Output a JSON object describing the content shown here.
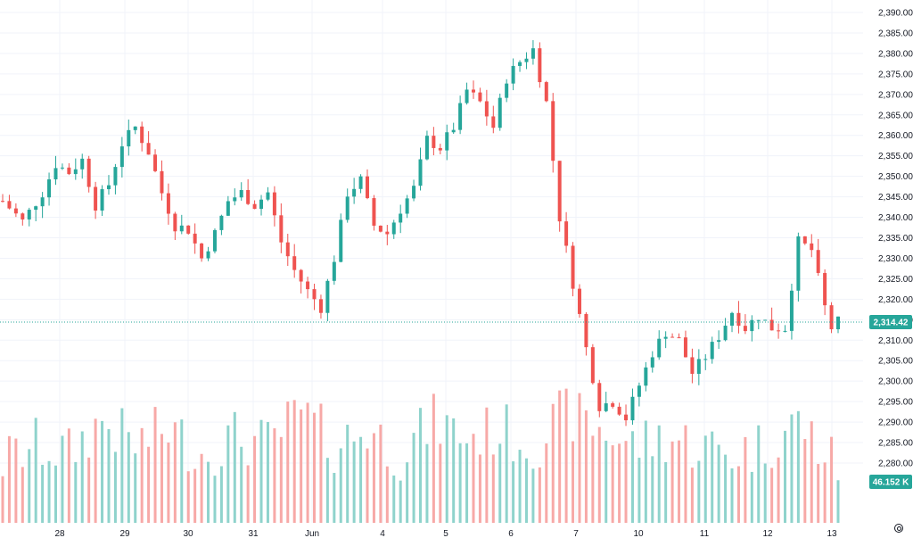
{
  "chart_data": {
    "type": "candlestick",
    "symbol": "",
    "x_tick_labels": [
      "28",
      "29",
      "30",
      "31",
      "Jun",
      "4",
      "5",
      "6",
      "7",
      "10",
      "11",
      "12",
      "13"
    ],
    "y_tick_labels": [
      "2,390.00",
      "2,385.00",
      "2,380.00",
      "2,375.00",
      "2,370.00",
      "2,365.00",
      "2,360.00",
      "2,355.00",
      "2,350.00",
      "2,345.00",
      "2,340.00",
      "2,335.00",
      "2,330.00",
      "2,325.00",
      "2,320.00",
      "2,315.00",
      "2,310.00",
      "2,305.00",
      "2,300.00",
      "2,295.00",
      "2,290.00",
      "2,285.00",
      "2,280.00"
    ],
    "ylim": [
      2277.4,
      2392.6
    ],
    "last_price": 2314.42,
    "last_price_label": "2,314.42",
    "last_volume_label": "46.152 K",
    "up_color": "#26a69a",
    "down_color": "#ef5350",
    "volume_up_color": "#8fd3cc",
    "volume_down_color": "#f7a9a7",
    "grid": true,
    "price_path": [
      [
        0,
        2344
      ],
      [
        3,
        2339
      ],
      [
        6,
        2346
      ],
      [
        8,
        2353
      ],
      [
        10,
        2351
      ],
      [
        12,
        2354
      ],
      [
        14,
        2343
      ],
      [
        16,
        2348
      ],
      [
        18,
        2358
      ],
      [
        20,
        2362
      ],
      [
        22,
        2356
      ],
      [
        24,
        2346
      ],
      [
        26,
        2338
      ],
      [
        28,
        2337
      ],
      [
        30,
        2330
      ],
      [
        32,
        2336
      ],
      [
        34,
        2344
      ],
      [
        36,
        2346
      ],
      [
        38,
        2343
      ],
      [
        40,
        2346
      ],
      [
        42,
        2334
      ],
      [
        44,
        2327
      ],
      [
        46,
        2322
      ],
      [
        48,
        2318
      ],
      [
        50,
        2330
      ],
      [
        52,
        2346
      ],
      [
        54,
        2349
      ],
      [
        56,
        2338
      ],
      [
        58,
        2336
      ],
      [
        60,
        2342
      ],
      [
        62,
        2347
      ],
      [
        64,
        2359
      ],
      [
        66,
        2357
      ],
      [
        68,
        2362
      ],
      [
        70,
        2371
      ],
      [
        72,
        2368
      ],
      [
        74,
        2362
      ],
      [
        76,
        2374
      ],
      [
        78,
        2378
      ],
      [
        80,
        2381
      ],
      [
        82,
        2368
      ],
      [
        84,
        2340
      ],
      [
        86,
        2324
      ],
      [
        88,
        2308
      ],
      [
        90,
        2294
      ],
      [
        92,
        2295
      ],
      [
        94,
        2291
      ],
      [
        96,
        2299
      ],
      [
        98,
        2307
      ],
      [
        100,
        2312
      ],
      [
        102,
        2310
      ],
      [
        104,
        2302
      ],
      [
        106,
        2306
      ],
      [
        108,
        2311
      ],
      [
        110,
        2317
      ],
      [
        112,
        2313
      ],
      [
        114,
        2316
      ],
      [
        116,
        2313
      ],
      [
        118,
        2313
      ],
      [
        120,
        2334
      ],
      [
        122,
        2332
      ],
      [
        124,
        2318
      ],
      [
        125,
        2313
      ],
      [
        126,
        2314.42
      ]
    ],
    "volume_path": [
      [
        0,
        0.4
      ],
      [
        5,
        0.6
      ],
      [
        10,
        0.5
      ],
      [
        15,
        0.9
      ],
      [
        20,
        0.6
      ],
      [
        25,
        0.8
      ],
      [
        30,
        0.5
      ],
      [
        35,
        0.7
      ],
      [
        40,
        0.6
      ],
      [
        45,
        1.0
      ],
      [
        50,
        0.6
      ],
      [
        55,
        0.8
      ],
      [
        60,
        0.5
      ],
      [
        65,
        0.9
      ],
      [
        70,
        0.7
      ],
      [
        75,
        0.8
      ],
      [
        80,
        0.6
      ],
      [
        85,
        1.0
      ],
      [
        90,
        0.8
      ],
      [
        95,
        0.6
      ],
      [
        100,
        0.7
      ],
      [
        105,
        0.6
      ],
      [
        110,
        0.5
      ],
      [
        115,
        0.6
      ],
      [
        120,
        0.9
      ],
      [
        126,
        0.3
      ]
    ]
  }
}
